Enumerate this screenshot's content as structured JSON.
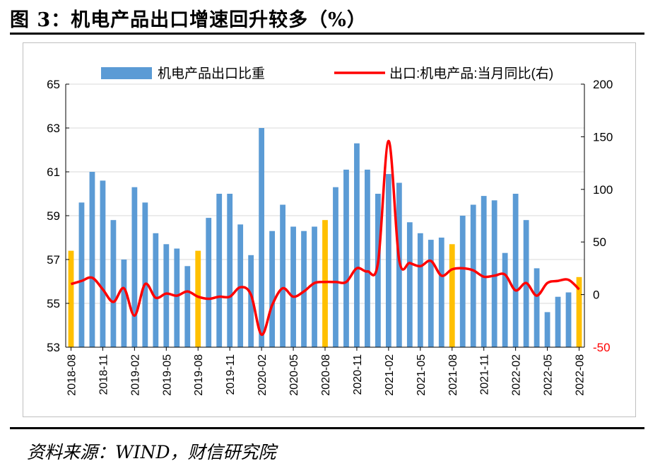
{
  "header": {
    "title": "图 3：机电产品出口增速回升较多（%）"
  },
  "footer": {
    "source": "资料来源：WIND，财信研究院"
  },
  "colors": {
    "bar_normal": "#5b9bd5",
    "bar_highlight": "#ffc000",
    "line": "#ff0000",
    "right_neg_tick": "#ff0000"
  },
  "chart_data": {
    "type": "bar+line",
    "legend": {
      "bar_label": "机电产品出口比重",
      "line_label": "出口:机电产品:当月同比(右)",
      "placement": "top"
    },
    "left_axis": {
      "ylim": [
        53,
        65
      ],
      "ticks": [
        "53",
        "55",
        "57",
        "59",
        "61",
        "63",
        "65"
      ]
    },
    "right_axis": {
      "ylim": [
        -50,
        200
      ],
      "ticks": [
        "-50",
        "0",
        "50",
        "100",
        "150",
        "200"
      ]
    },
    "x_tick_labels": [
      "2018-08",
      "2018-11",
      "2019-02",
      "2019-05",
      "2019-08",
      "2019-11",
      "2020-02",
      "2020-05",
      "2020-08",
      "2020-11",
      "2021-02",
      "2021-05",
      "2021-08",
      "2021-11",
      "2022-02",
      "2022-05",
      "2022-08"
    ],
    "categories": [
      "2018-08",
      "2018-09",
      "2018-10",
      "2018-11",
      "2018-12",
      "2019-01",
      "2019-02",
      "2019-03",
      "2019-04",
      "2019-05",
      "2019-06",
      "2019-07",
      "2019-08",
      "2019-09",
      "2019-10",
      "2019-11",
      "2019-12",
      "2020-01",
      "2020-02",
      "2020-03",
      "2020-04",
      "2020-05",
      "2020-06",
      "2020-07",
      "2020-08",
      "2020-09",
      "2020-10",
      "2020-11",
      "2020-12",
      "2021-01",
      "2021-02",
      "2021-03",
      "2021-04",
      "2021-05",
      "2021-06",
      "2021-07",
      "2021-08",
      "2021-09",
      "2021-10",
      "2021-11",
      "2021-12",
      "2022-01",
      "2022-02",
      "2022-03",
      "2022-04",
      "2022-05",
      "2022-06",
      "2022-07",
      "2022-08"
    ],
    "series": [
      {
        "name": "机电产品出口比重",
        "type": "bar",
        "axis": "left",
        "values": [
          57.4,
          59.6,
          61.0,
          60.6,
          58.8,
          57.0,
          60.3,
          59.6,
          58.2,
          57.7,
          57.5,
          56.7,
          57.4,
          58.9,
          60.0,
          60.0,
          58.6,
          57.2,
          63.0,
          58.3,
          59.5,
          58.5,
          58.3,
          58.5,
          58.8,
          60.3,
          61.1,
          62.3,
          61.1,
          60.0,
          60.9,
          60.5,
          58.7,
          58.2,
          57.9,
          58.0,
          57.7,
          59.0,
          59.5,
          59.9,
          59.7,
          57.3,
          60.0,
          58.8,
          56.6,
          54.6,
          55.3,
          55.5,
          56.2
        ],
        "highlight_indices": [
          0,
          12,
          24,
          36,
          48
        ]
      },
      {
        "name": "出口:机电产品:当月同比(右)",
        "type": "line",
        "axis": "right",
        "values": [
          10,
          13,
          16,
          5,
          -7,
          6,
          -20,
          10,
          -3,
          1,
          -1,
          3,
          -2,
          -4,
          -2,
          -2,
          7,
          0,
          -38,
          -10,
          6,
          -2,
          3,
          11,
          12,
          12,
          12,
          25,
          22,
          30,
          146,
          33,
          30,
          27,
          32,
          18,
          24,
          25,
          23,
          17,
          18,
          19,
          4,
          11,
          -1,
          11,
          13,
          14,
          5
        ]
      }
    ]
  }
}
